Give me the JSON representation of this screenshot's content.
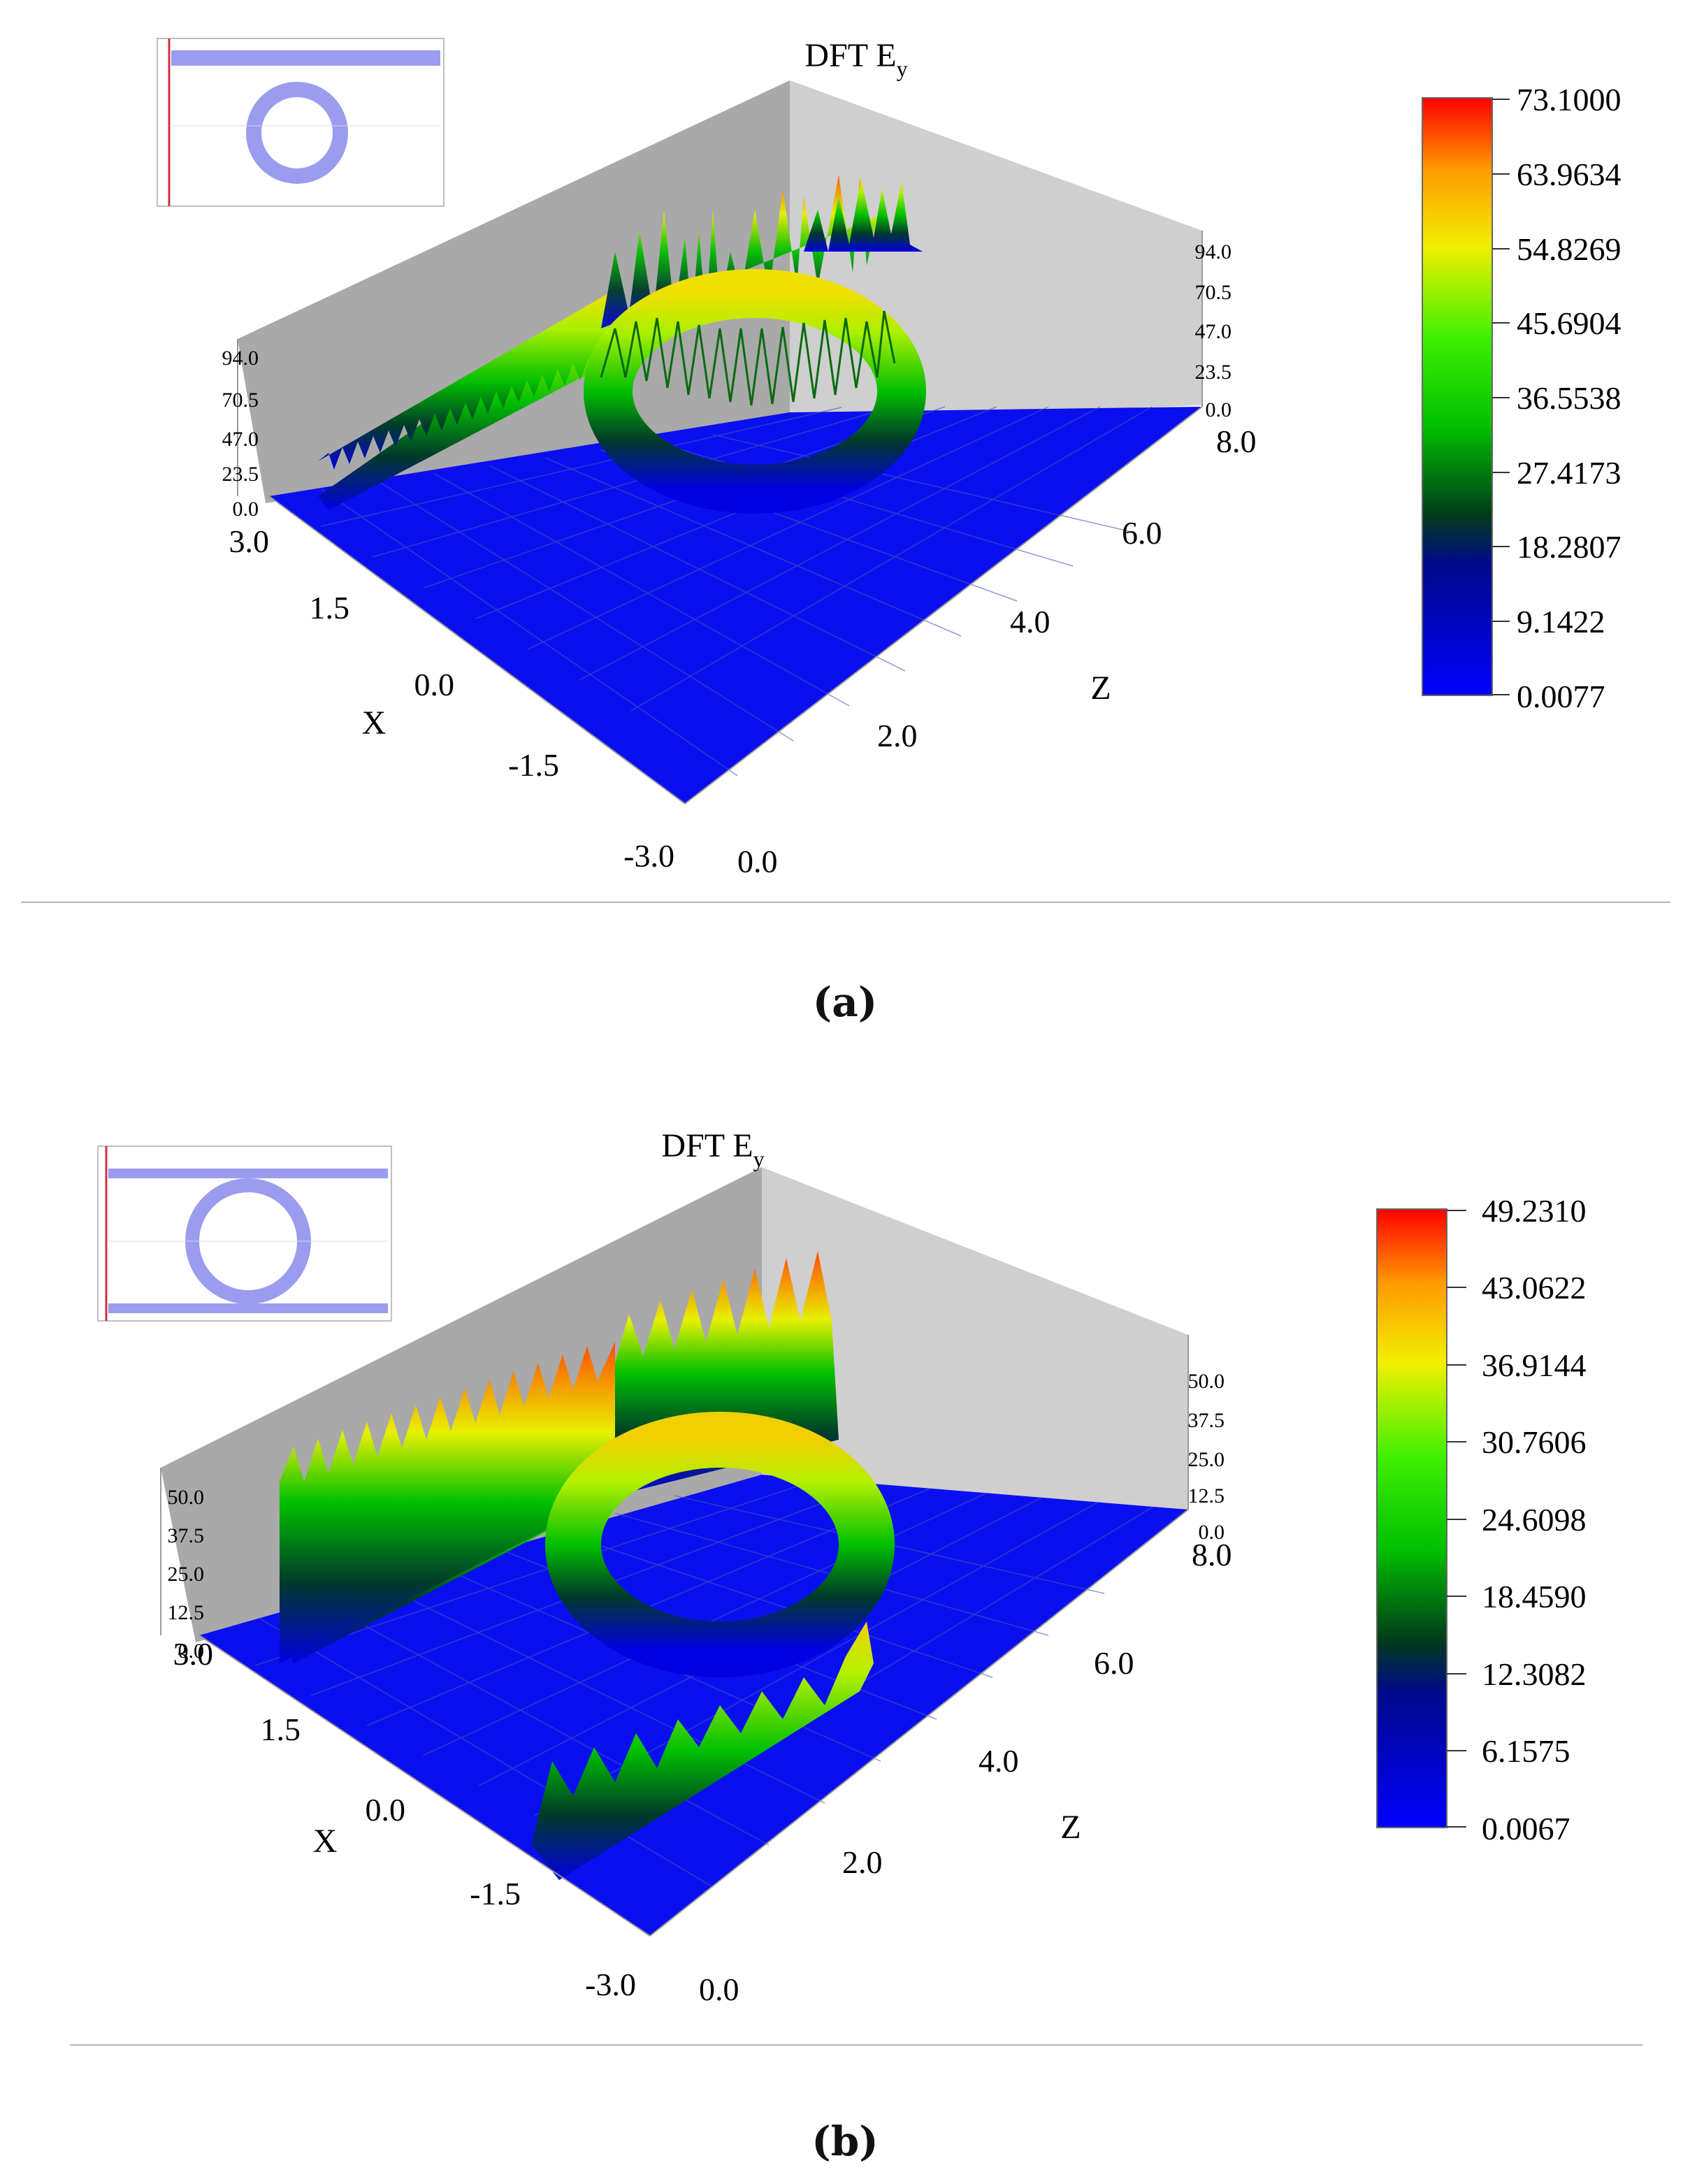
{
  "figure": {
    "panels": [
      {
        "id": "a",
        "caption": "(a)",
        "chart_data": {
          "type": "surface",
          "title": "DFT E",
          "title_subscript": "y",
          "xlabel": "X",
          "zlabel": "Z",
          "x_ticks": [
            "-3.0",
            "-1.5",
            "0.0",
            "1.5",
            "3.0"
          ],
          "z_ticks": [
            "0.0",
            "2.0",
            "4.0",
            "6.0",
            "8.0"
          ],
          "xlim": [
            -3.0,
            3.0
          ],
          "zlim": [
            0.0,
            8.0
          ],
          "height_ticks_left": [
            "0.0",
            "23.5",
            "47.0",
            "70.5",
            "94.0"
          ],
          "height_ticks_right": [
            "0.0",
            "23.5",
            "47.0",
            "70.5",
            "94.0"
          ],
          "height_range": [
            0.0,
            94.0
          ],
          "colorbar_ticks": [
            "73.1000",
            "63.9634",
            "54.8269",
            "45.6904",
            "36.5538",
            "27.4173",
            "18.2807",
            "9.1422",
            "0.0077"
          ],
          "colorbar_range": [
            0.0077,
            73.1
          ],
          "colormap": [
            "#0000ff",
            "#003a1a",
            "#00c000",
            "#40f000",
            "#f0f000",
            "#ff9a00",
            "#ff0000"
          ],
          "grid": true,
          "inset": "ring resonator schematic (top-left)"
        }
      },
      {
        "id": "b",
        "caption": "(b)",
        "chart_data": {
          "type": "surface",
          "title": "DFT E",
          "title_subscript": "y",
          "xlabel": "X",
          "zlabel": "Z",
          "x_ticks": [
            "-3.0",
            "-1.5",
            "0.0",
            "1.5",
            "3.0"
          ],
          "z_ticks": [
            "0.0",
            "2.0",
            "4.0",
            "6.0",
            "8.0"
          ],
          "xlim": [
            -3.0,
            3.0
          ],
          "zlim": [
            0.0,
            8.0
          ],
          "height_ticks_left": [
            "0.0",
            "12.5",
            "25.0",
            "37.5",
            "50.0"
          ],
          "height_ticks_right": [
            "0.0",
            "12.5",
            "25.0",
            "37.5",
            "50.0"
          ],
          "height_range": [
            0.0,
            50.0
          ],
          "colorbar_ticks": [
            "49.2310",
            "43.0622",
            "36.9144",
            "30.7606",
            "24.6098",
            "18.4590",
            "12.3082",
            "6.1575",
            "0.0067"
          ],
          "colorbar_range": [
            0.0067,
            49.231
          ],
          "colormap": [
            "#0000ff",
            "#003a1a",
            "#00c000",
            "#40f000",
            "#f0f000",
            "#ff9a00",
            "#ff0000"
          ],
          "grid": true,
          "inset": "ring resonator schematic with two bus waveguides (top-left)"
        }
      }
    ]
  }
}
